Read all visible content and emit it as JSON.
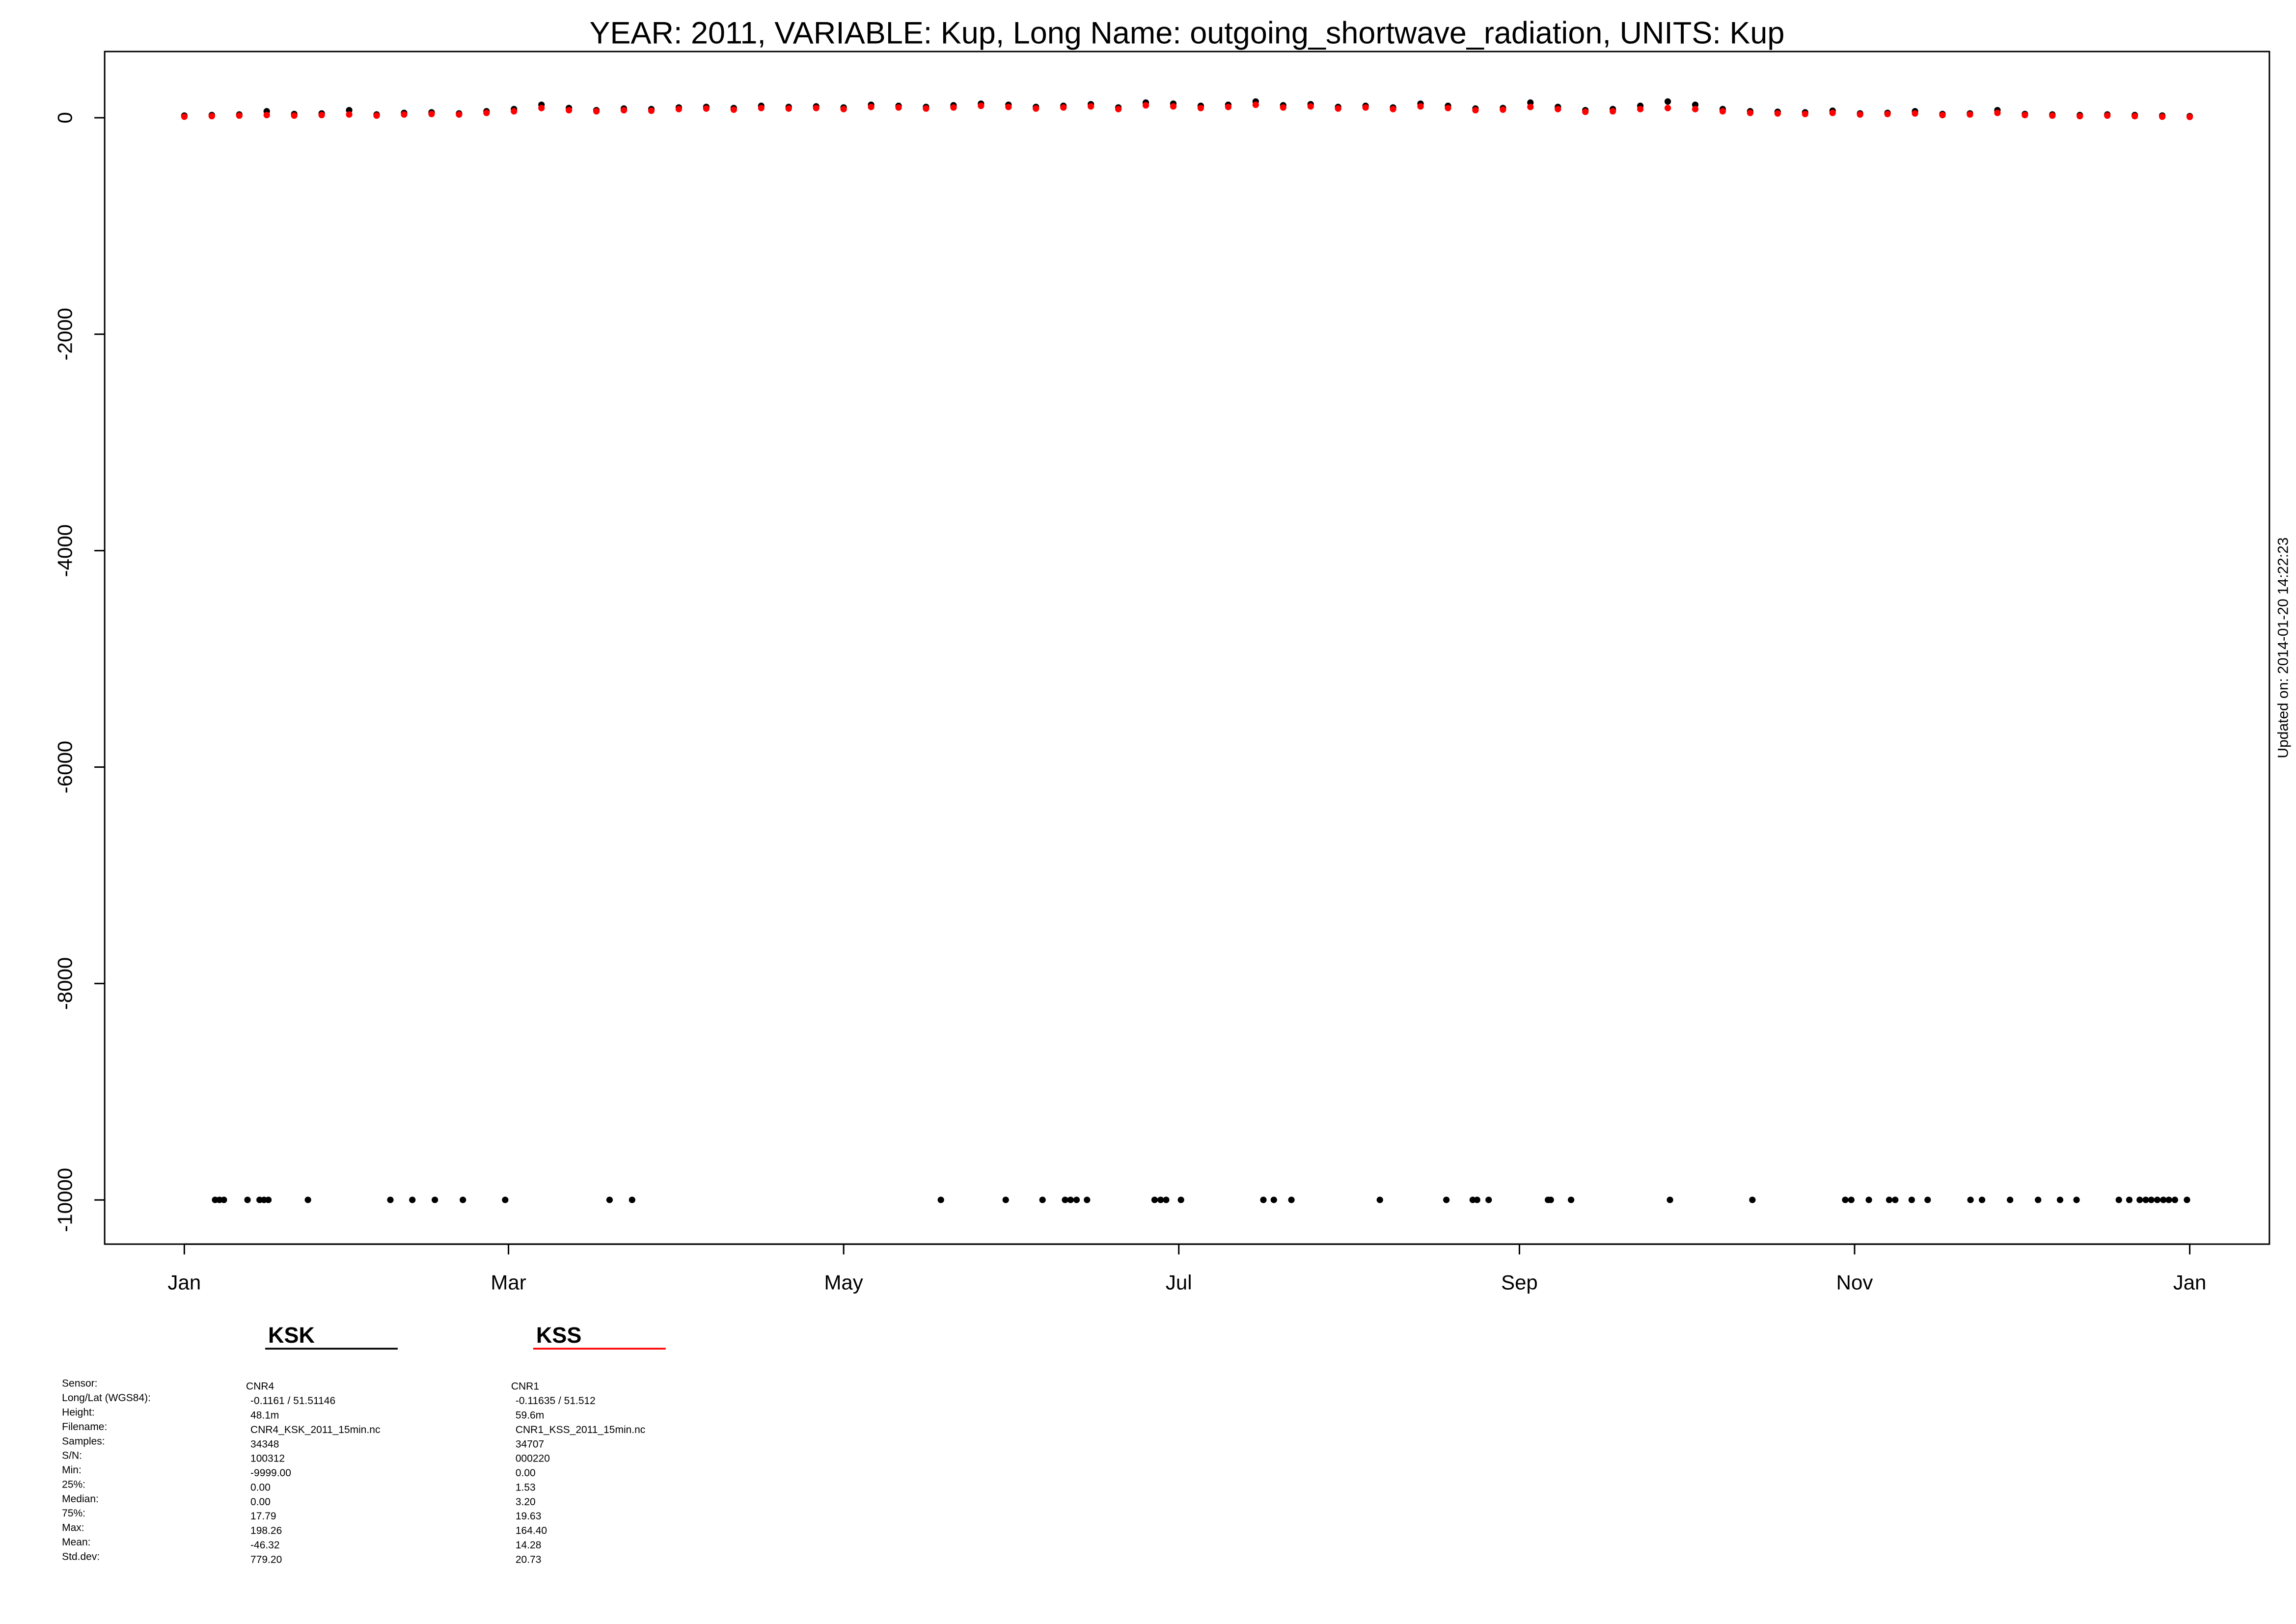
{
  "chart_data": {
    "type": "scatter",
    "title": "YEAR: 2011, VARIABLE: Kup, Long Name: outgoing_shortwave_radiation, UNITS: Kup",
    "footnote": "Updated on: 2014-01-20 14:22:23",
    "xlim": [
      -14.5,
      379.5
    ],
    "ylim": [
      -10408,
      612
    ],
    "xticks": [
      {
        "value": 0,
        "label": "Jan"
      },
      {
        "value": 59,
        "label": "Mar"
      },
      {
        "value": 120,
        "label": "May"
      },
      {
        "value": 181,
        "label": "Jul"
      },
      {
        "value": 243,
        "label": "Sep"
      },
      {
        "value": 304,
        "label": "Nov"
      },
      {
        "value": 365,
        "label": "Jan"
      }
    ],
    "yticks": [
      0,
      -2000,
      -4000,
      -6000,
      -8000,
      -10000
    ],
    "stats_labels": [
      "Sensor:",
      "Long/Lat (WGS84):",
      "Height:",
      "Filename:",
      "Samples:",
      "S/N:",
      "Min:",
      "25%:",
      "Median:",
      "75%:",
      "Max:",
      "Mean:",
      "Std.dev:"
    ],
    "series": [
      {
        "name": "KSK",
        "color": "#000000",
        "stats": [
          "CNR4",
          "-0.1161 / 51.51146",
          "48.1m",
          "CNR4_KSK_2011_15min.nc",
          "34348",
          "100312",
          "-9999.00",
          "0.00",
          "0.00",
          "17.79",
          "198.26",
          "-46.32",
          "779.20"
        ],
        "x": [
          0,
          5,
          10,
          15,
          20,
          25,
          30,
          35,
          40,
          45,
          50,
          55,
          60,
          65,
          70,
          75,
          80,
          85,
          90,
          95,
          100,
          105,
          110,
          115,
          120,
          125,
          130,
          135,
          140,
          145,
          150,
          155,
          160,
          165,
          170,
          175,
          180,
          185,
          190,
          195,
          200,
          205,
          210,
          215,
          220,
          225,
          230,
          235,
          240,
          245,
          250,
          255,
          260,
          265,
          270,
          275,
          280,
          285,
          290,
          295,
          300,
          305,
          310,
          315,
          320,
          325,
          330,
          335,
          340,
          345,
          350,
          355,
          360,
          365,
          5.6,
          6.4,
          7.2,
          11.5,
          13.7,
          14.5,
          15.3,
          22.5,
          37.5,
          41.5,
          45.6,
          50.7,
          58.4,
          77.4,
          81.5,
          137.7,
          149.5,
          156.2,
          160.3,
          161.3,
          162.4,
          164.3,
          176.6,
          177.7,
          178.7,
          181.4,
          196.4,
          198.3,
          201.5,
          217.6,
          229.7,
          234.5,
          235.3,
          237.4,
          248.2,
          248.7,
          252.4,
          270.4,
          285.4,
          302.3,
          303.4,
          306.6,
          310.3,
          311.4,
          314.4,
          317.3,
          325.1,
          327.2,
          332.3,
          337.4,
          341.4,
          344.4,
          352.1,
          354.0,
          355.9,
          357.0,
          358.0,
          359.1,
          360.2,
          361.2,
          362.3,
          364.5
        ],
        "values": [
          20,
          25,
          30,
          60,
          35,
          40,
          70,
          30,
          45,
          50,
          40,
          60,
          80,
          120,
          90,
          70,
          85,
          80,
          95,
          100,
          90,
          110,
          100,
          105,
          95,
          120,
          110,
          100,
          115,
          130,
          120,
          100,
          110,
          125,
          95,
          140,
          130,
          110,
          120,
          150,
          115,
          125,
          100,
          110,
          95,
          130,
          110,
          85,
          90,
          140,
          100,
          70,
          80,
          110,
          150,
          120,
          80,
          60,
          55,
          50,
          65,
          40,
          45,
          60,
          35,
          40,
          70,
          35,
          30,
          25,
          30,
          25,
          20,
          15,
          -9999,
          -9999,
          -9999,
          -9999,
          -9999,
          -9999,
          -9999,
          -9999,
          -9999,
          -9999,
          -9999,
          -9999,
          -9999,
          -9999,
          -9999,
          -9999,
          -9999,
          -9999,
          -9999,
          -9999,
          -9999,
          -9999,
          -9999,
          -9999,
          -9999,
          -9999,
          -9999,
          -9999,
          -9999,
          -9999,
          -9999,
          -9999,
          -9999,
          -9999,
          -9999,
          -9999,
          -9999,
          -9999,
          -9999,
          -9999,
          -9999,
          -9999,
          -9999,
          -9999,
          -9999,
          -9999,
          -9999,
          -9999,
          -9999,
          -9999,
          -9999,
          -9999,
          -9999,
          -9999,
          -9999,
          -9999,
          -9999,
          -9999,
          -9999,
          -9999,
          -9999,
          -9999
        ]
      },
      {
        "name": "KSS",
        "color": "#ff0000",
        "stats": [
          "CNR1",
          "-0.11635 / 51.512",
          "59.6m",
          "CNR1_KSS_2011_15min.nc",
          "34707",
          "000220",
          "0.00",
          "1.53",
          "3.20",
          "19.63",
          "164.40",
          "14.28",
          "20.73"
        ],
        "x": [
          0,
          5,
          10,
          15,
          20,
          25,
          30,
          35,
          40,
          45,
          50,
          55,
          60,
          65,
          70,
          75,
          80,
          85,
          90,
          95,
          100,
          105,
          110,
          115,
          120,
          125,
          130,
          135,
          140,
          145,
          150,
          155,
          160,
          165,
          170,
          175,
          180,
          185,
          190,
          195,
          200,
          205,
          210,
          215,
          220,
          225,
          230,
          235,
          240,
          245,
          250,
          255,
          260,
          265,
          270,
          275,
          280,
          285,
          290,
          295,
          300,
          305,
          310,
          315,
          320,
          325,
          330,
          335,
          340,
          345,
          350,
          355,
          360,
          365
        ],
        "values": [
          10,
          15,
          20,
          25,
          20,
          25,
          30,
          20,
          30,
          35,
          30,
          45,
          60,
          90,
          70,
          60,
          70,
          65,
          80,
          85,
          75,
          90,
          85,
          90,
          80,
          100,
          95,
          85,
          95,
          110,
          100,
          85,
          95,
          105,
          80,
          115,
          105,
          90,
          100,
          120,
          95,
          105,
          85,
          95,
          80,
          105,
          90,
          70,
          75,
          100,
          80,
          55,
          60,
          80,
          90,
          80,
          60,
          45,
          40,
          35,
          45,
          30,
          35,
          40,
          25,
          30,
          45,
          25,
          20,
          15,
          20,
          15,
          10,
          8
        ]
      }
    ]
  }
}
